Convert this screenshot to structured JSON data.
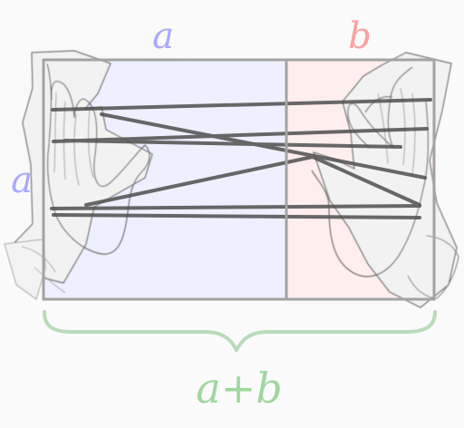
{
  "labels": {
    "top_left": "a",
    "top_right": "b",
    "side_left": "a",
    "bottom": "a+b"
  },
  "colors": {
    "label_a": "#a9a9ff",
    "label_b": "#ff9f9f",
    "label_bottom": "#9fd79f",
    "rect_border": "#a3a3a3",
    "left_fill": "#eef0ff",
    "right_fill": "#ffeeee",
    "string": "#4f4f4f",
    "hand_fill": "#f3f3f3",
    "hand_stroke": "#6f6f6f",
    "brace": "#b8dcb8"
  }
}
